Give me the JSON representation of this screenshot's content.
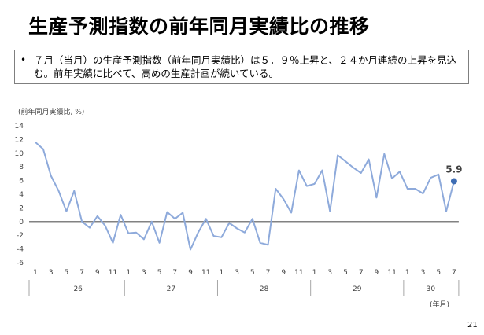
{
  "slide": {
    "title": "生産予測指数の前年同月実績比の推移",
    "bullet_marker": "•",
    "bullet_text": "７月（当月）の生産予測指数（前年同月実績比）は５．９％上昇と、２４か月連続の上昇を見込む。前年実績に比べて、高めの生産計画が続いている。",
    "page_number": "21"
  },
  "chart_data": {
    "type": "line",
    "title": "",
    "ylabel": "(前年同月実績比, %)",
    "xlabel": "(年月)",
    "ylim": [
      -6,
      14
    ],
    "yticks": [
      14,
      12,
      10,
      8,
      6,
      4,
      2,
      0,
      -2,
      -4,
      -6
    ],
    "zero_line": true,
    "grid": false,
    "month_ticks": [
      "1",
      "3",
      "5",
      "7",
      "9",
      "11",
      "1",
      "3",
      "5",
      "7",
      "9",
      "11",
      "1",
      "3",
      "5",
      "7",
      "9",
      "11",
      "1",
      "3",
      "5",
      "7",
      "9",
      "11",
      "1",
      "3",
      "5",
      "7"
    ],
    "years": [
      "26",
      "27",
      "28",
      "29",
      "30"
    ],
    "series": [
      {
        "color": "#8eaadb",
        "values": [
          11.6,
          10.6,
          6.7,
          4.5,
          1.5,
          4.5,
          0.0,
          -0.9,
          0.8,
          -0.6,
          -3.1,
          1.0,
          -1.7,
          -1.6,
          -2.6,
          0.0,
          -3.1,
          1.4,
          0.4,
          1.3,
          -4.1,
          -1.6,
          0.4,
          -2.1,
          -2.3,
          -0.2,
          -1.0,
          -1.6,
          0.4,
          -3.1,
          -3.4,
          4.8,
          3.3,
          1.3,
          7.5,
          5.2,
          5.5,
          7.5,
          1.5,
          9.7,
          8.8,
          7.9,
          7.1,
          9.1,
          3.5,
          9.9,
          6.3,
          7.3,
          4.8,
          4.8,
          4.1,
          6.4,
          6.9,
          1.5,
          5.9
        ]
      }
    ],
    "last_point": {
      "value": 5.9,
      "label": "5.9",
      "color": "#3e6db4"
    }
  }
}
